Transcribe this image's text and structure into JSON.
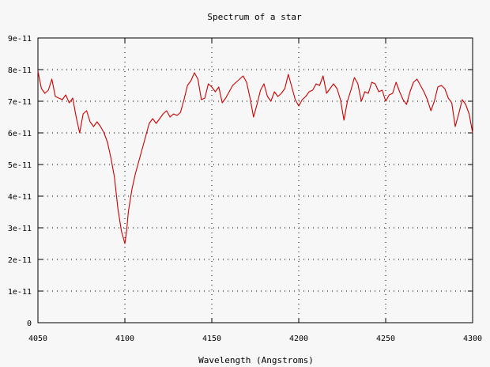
{
  "chart_data": {
    "type": "line",
    "title": "Spectrum of a star",
    "xlabel": "Wavelength (Angstroms)",
    "ylabel": "",
    "xlim": [
      4050,
      4300
    ],
    "ylim": [
      0,
      9e-11
    ],
    "grid": true,
    "x_ticks": [
      {
        "value": 4050,
        "label": "4050"
      },
      {
        "value": 4100,
        "label": "4100"
      },
      {
        "value": 4150,
        "label": "4150"
      },
      {
        "value": 4200,
        "label": "4200"
      },
      {
        "value": 4250,
        "label": "4250"
      },
      {
        "value": 4300,
        "label": "4300"
      }
    ],
    "y_ticks": [
      {
        "value": 0,
        "label": "0"
      },
      {
        "value": 1e-11,
        "label": "1e-11"
      },
      {
        "value": 2e-11,
        "label": "2e-11"
      },
      {
        "value": 3e-11,
        "label": "3e-11"
      },
      {
        "value": 4e-11,
        "label": "4e-11"
      },
      {
        "value": 5e-11,
        "label": "5e-11"
      },
      {
        "value": 6e-11,
        "label": "6e-11"
      },
      {
        "value": 7e-11,
        "label": "7e-11"
      },
      {
        "value": 8e-11,
        "label": "8e-11"
      },
      {
        "value": 9e-11,
        "label": "9e-11"
      }
    ],
    "series": [
      {
        "color": "#cc0000",
        "x": [
          4050,
          4052,
          4054,
          4056,
          4058,
          4060,
          4062,
          4064,
          4066,
          4068,
          4070,
          4072,
          4074,
          4076,
          4078,
          4080,
          4082,
          4084,
          4086,
          4088,
          4090,
          4092,
          4094,
          4096,
          4098,
          4100,
          4101,
          4102,
          4104,
          4106,
          4108,
          4110,
          4112,
          4114,
          4116,
          4118,
          4120,
          4122,
          4124,
          4126,
          4128,
          4130,
          4132,
          4134,
          4136,
          4138,
          4140,
          4142,
          4144,
          4146,
          4148,
          4150,
          4152,
          4154,
          4156,
          4158,
          4160,
          4162,
          4164,
          4166,
          4168,
          4170,
          4172,
          4174,
          4176,
          4178,
          4180,
          4182,
          4184,
          4186,
          4188,
          4190,
          4192,
          4194,
          4196,
          4198,
          4200,
          4202,
          4204,
          4206,
          4208,
          4210,
          4212,
          4214,
          4216,
          4218,
          4220,
          4222,
          4224,
          4226,
          4228,
          4230,
          4232,
          4234,
          4236,
          4238,
          4240,
          4242,
          4244,
          4246,
          4248,
          4250,
          4252,
          4254,
          4256,
          4258,
          4260,
          4262,
          4264,
          4266,
          4268,
          4270,
          4272,
          4274,
          4276,
          4278,
          4280,
          4282,
          4284,
          4286,
          4288,
          4290,
          4292,
          4294,
          4296,
          4298,
          4300
        ],
        "y": [
          7.95e-11,
          7.4e-11,
          7.25e-11,
          7.35e-11,
          7.7e-11,
          7.15e-11,
          7.1e-11,
          7.05e-11,
          7.2e-11,
          6.95e-11,
          7.1e-11,
          6.5e-11,
          6e-11,
          6.6e-11,
          6.7e-11,
          6.35e-11,
          6.2e-11,
          6.35e-11,
          6.2e-11,
          6e-11,
          5.7e-11,
          5.2e-11,
          4.6e-11,
          3.6e-11,
          2.9e-11,
          2.5e-11,
          2.9e-11,
          3.5e-11,
          4.2e-11,
          4.7e-11,
          5.1e-11,
          5.5e-11,
          5.9e-11,
          6.3e-11,
          6.45e-11,
          6.3e-11,
          6.45e-11,
          6.6e-11,
          6.7e-11,
          6.5e-11,
          6.6e-11,
          6.55e-11,
          6.65e-11,
          7.05e-11,
          7.5e-11,
          7.65e-11,
          7.9e-11,
          7.7e-11,
          7.05e-11,
          7.1e-11,
          7.55e-11,
          7.45e-11,
          7.3e-11,
          7.45e-11,
          6.95e-11,
          7.1e-11,
          7.3e-11,
          7.5e-11,
          7.6e-11,
          7.7e-11,
          7.8e-11,
          7.6e-11,
          7.1e-11,
          6.5e-11,
          6.9e-11,
          7.35e-11,
          7.55e-11,
          7.15e-11,
          7e-11,
          7.3e-11,
          7.15e-11,
          7.25e-11,
          7.4e-11,
          7.85e-11,
          7.45e-11,
          7.05e-11,
          6.85e-11,
          7.05e-11,
          7.15e-11,
          7.3e-11,
          7.35e-11,
          7.55e-11,
          7.5e-11,
          7.8e-11,
          7.25e-11,
          7.4e-11,
          7.55e-11,
          7.4e-11,
          7.05e-11,
          6.4e-11,
          7e-11,
          7.35e-11,
          7.75e-11,
          7.55e-11,
          7e-11,
          7.3e-11,
          7.25e-11,
          7.6e-11,
          7.55e-11,
          7.3e-11,
          7.35e-11,
          7e-11,
          7.2e-11,
          7.25e-11,
          7.6e-11,
          7.3e-11,
          7.05e-11,
          6.9e-11,
          7.3e-11,
          7.6e-11,
          7.7e-11,
          7.5e-11,
          7.3e-11,
          7.05e-11,
          6.7e-11,
          7e-11,
          7.45e-11,
          7.5e-11,
          7.4e-11,
          7.1e-11,
          6.95e-11,
          6.2e-11,
          6.6e-11,
          7.05e-11,
          6.9e-11,
          6.6e-11,
          6e-11
        ]
      }
    ]
  }
}
